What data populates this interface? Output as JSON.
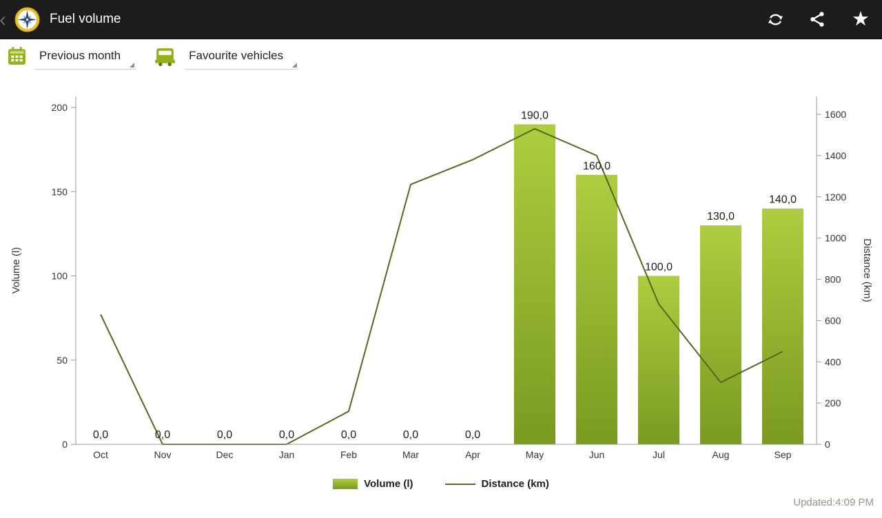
{
  "action_bar": {
    "title": "Fuel volume",
    "back_glyph": "‹",
    "star_glyph": "★"
  },
  "toolbar": {
    "period_label": "Previous month",
    "vehicles_label": "Favourite vehicles"
  },
  "chart_data": {
    "type": "combo",
    "categories": [
      "Oct",
      "Nov",
      "Dec",
      "Jan",
      "Feb",
      "Mar",
      "Apr",
      "May",
      "Jun",
      "Jul",
      "Aug",
      "Sep"
    ],
    "series": [
      {
        "name": "Volume (l)",
        "type": "bar",
        "axis": "left",
        "values": [
          0,
          0,
          0,
          0,
          0,
          0,
          0,
          190,
          160,
          100,
          130,
          140
        ],
        "labels": [
          "0,0",
          "0,0",
          "0,0",
          "0,0",
          "0,0",
          "0,0",
          "0,0",
          "190,0",
          "160,0",
          "100,0",
          "130,0",
          "140,0"
        ]
      },
      {
        "name": "Distance (km)",
        "type": "line",
        "axis": "right",
        "values": [
          630,
          0,
          0,
          0,
          160,
          1260,
          1380,
          1530,
          1400,
          680,
          300,
          450
        ]
      }
    ],
    "left_axis": {
      "label": "Volume (l)",
      "min": 0,
      "max": 200,
      "ticks": [
        0,
        50,
        100,
        150,
        200
      ]
    },
    "right_axis": {
      "label": "Distance (km)",
      "min": 0,
      "max": 1600,
      "ticks": [
        0,
        200,
        400,
        600,
        800,
        1000,
        1200,
        1400,
        1600
      ]
    },
    "legend": [
      {
        "label": "Volume (l)",
        "type": "bar"
      },
      {
        "label": "Distance (km)",
        "type": "line"
      }
    ],
    "colors": {
      "bar_top": "#aecd40",
      "bar_bottom": "#7a9a20",
      "line": "#57661e",
      "axis_line": "#9a9a9a",
      "axis_text": "#333333"
    },
    "grid": false,
    "legend_position": "bottom"
  },
  "footer": {
    "updated": "Updated:4:09 PM"
  }
}
